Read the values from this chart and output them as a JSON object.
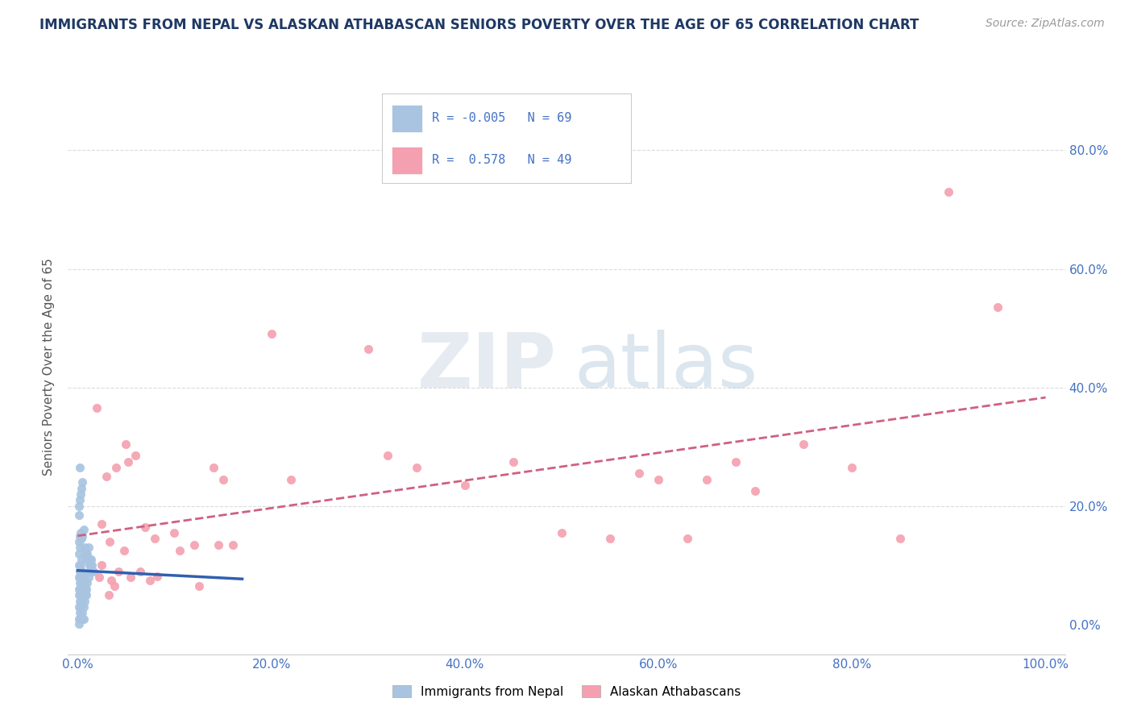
{
  "title": "IMMIGRANTS FROM NEPAL VS ALASKAN ATHABASCAN SENIORS POVERTY OVER THE AGE OF 65 CORRELATION CHART",
  "source": "Source: ZipAtlas.com",
  "ylabel": "Seniors Poverty Over the Age of 65",
  "r_nepal": -0.005,
  "n_nepal": 69,
  "r_athabascan": 0.578,
  "n_athabascan": 49,
  "nepal_color": "#a8c4e0",
  "athabascan_color": "#f4a0b0",
  "nepal_line_color": "#3060b0",
  "athabascan_line_color": "#d06080",
  "grid_color": "#cccccc",
  "title_color": "#1f3864",
  "axis_label_color": "#4472c4",
  "nepal_scatter": [
    [
      0.001,
      0.185
    ],
    [
      0.002,
      0.265
    ],
    [
      0.003,
      0.155
    ],
    [
      0.004,
      0.145
    ],
    [
      0.005,
      0.15
    ],
    [
      0.006,
      0.16
    ],
    [
      0.007,
      0.13
    ],
    [
      0.008,
      0.12
    ],
    [
      0.009,
      0.11
    ],
    [
      0.01,
      0.12
    ],
    [
      0.011,
      0.13
    ],
    [
      0.012,
      0.1
    ],
    [
      0.013,
      0.11
    ],
    [
      0.014,
      0.09
    ],
    [
      0.001,
      0.1
    ],
    [
      0.002,
      0.09
    ],
    [
      0.003,
      0.08
    ],
    [
      0.004,
      0.07
    ],
    [
      0.005,
      0.07
    ],
    [
      0.001,
      0.05
    ],
    [
      0.002,
      0.04
    ],
    [
      0.003,
      0.05
    ],
    [
      0.001,
      0.06
    ],
    [
      0.002,
      0.08
    ],
    [
      0.003,
      0.09
    ],
    [
      0.001,
      0.12
    ],
    [
      0.002,
      0.13
    ],
    [
      0.001,
      0.14
    ],
    [
      0.002,
      0.15
    ],
    [
      0.003,
      0.1
    ],
    [
      0.004,
      0.11
    ],
    [
      0.005,
      0.09
    ],
    [
      0.006,
      0.08
    ],
    [
      0.007,
      0.07
    ],
    [
      0.008,
      0.06
    ],
    [
      0.009,
      0.05
    ],
    [
      0.001,
      0.03
    ],
    [
      0.002,
      0.02
    ],
    [
      0.003,
      0.03
    ],
    [
      0.004,
      0.04
    ],
    [
      0.005,
      0.02
    ],
    [
      0.001,
      0.08
    ],
    [
      0.002,
      0.07
    ],
    [
      0.003,
      0.06
    ],
    [
      0.004,
      0.05
    ],
    [
      0.005,
      0.04
    ],
    [
      0.006,
      0.03
    ],
    [
      0.007,
      0.04
    ],
    [
      0.008,
      0.05
    ],
    [
      0.009,
      0.06
    ],
    [
      0.01,
      0.07
    ],
    [
      0.011,
      0.08
    ],
    [
      0.012,
      0.09
    ],
    [
      0.013,
      0.1
    ],
    [
      0.014,
      0.11
    ],
    [
      0.015,
      0.1
    ],
    [
      0.016,
      0.09
    ],
    [
      0.001,
      0.2
    ],
    [
      0.002,
      0.21
    ],
    [
      0.003,
      0.22
    ],
    [
      0.004,
      0.23
    ],
    [
      0.005,
      0.24
    ],
    [
      0.001,
      0.01
    ],
    [
      0.002,
      0.01
    ],
    [
      0.003,
      0.01
    ],
    [
      0.004,
      0.01
    ],
    [
      0.005,
      0.01
    ],
    [
      0.006,
      0.01
    ],
    [
      0.001,
      0.001
    ]
  ],
  "athabascan_scatter": [
    [
      0.02,
      0.365
    ],
    [
      0.025,
      0.17
    ],
    [
      0.025,
      0.1
    ],
    [
      0.022,
      0.08
    ],
    [
      0.03,
      0.25
    ],
    [
      0.033,
      0.14
    ],
    [
      0.035,
      0.075
    ],
    [
      0.032,
      0.05
    ],
    [
      0.04,
      0.265
    ],
    [
      0.042,
      0.09
    ],
    [
      0.038,
      0.065
    ],
    [
      0.05,
      0.305
    ],
    [
      0.052,
      0.275
    ],
    [
      0.048,
      0.125
    ],
    [
      0.055,
      0.08
    ],
    [
      0.06,
      0.285
    ],
    [
      0.065,
      0.09
    ],
    [
      0.07,
      0.165
    ],
    [
      0.075,
      0.075
    ],
    [
      0.08,
      0.145
    ],
    [
      0.082,
      0.082
    ],
    [
      0.1,
      0.155
    ],
    [
      0.105,
      0.125
    ],
    [
      0.12,
      0.135
    ],
    [
      0.125,
      0.065
    ],
    [
      0.14,
      0.265
    ],
    [
      0.145,
      0.135
    ],
    [
      0.15,
      0.245
    ],
    [
      0.16,
      0.135
    ],
    [
      0.2,
      0.49
    ],
    [
      0.22,
      0.245
    ],
    [
      0.3,
      0.465
    ],
    [
      0.32,
      0.285
    ],
    [
      0.35,
      0.265
    ],
    [
      0.4,
      0.235
    ],
    [
      0.45,
      0.275
    ],
    [
      0.5,
      0.155
    ],
    [
      0.55,
      0.145
    ],
    [
      0.58,
      0.255
    ],
    [
      0.6,
      0.245
    ],
    [
      0.63,
      0.145
    ],
    [
      0.65,
      0.245
    ],
    [
      0.68,
      0.275
    ],
    [
      0.7,
      0.225
    ],
    [
      0.75,
      0.305
    ],
    [
      0.8,
      0.265
    ],
    [
      0.85,
      0.145
    ],
    [
      0.9,
      0.73
    ],
    [
      0.95,
      0.535
    ]
  ],
  "xlim": [
    -0.01,
    1.02
  ],
  "ylim": [
    -0.05,
    0.92
  ],
  "xticks": [
    0.0,
    0.2,
    0.4,
    0.6,
    0.8,
    1.0
  ],
  "yticks": [
    0.0,
    0.2,
    0.4,
    0.6,
    0.8
  ],
  "xtick_labels": [
    "0.0%",
    "20.0%",
    "40.0%",
    "60.0%",
    "80.0%",
    "100.0%"
  ],
  "ytick_labels_right": [
    "0.0%",
    "20.0%",
    "40.0%",
    "60.0%",
    "80.0%"
  ],
  "background_color": "#ffffff"
}
